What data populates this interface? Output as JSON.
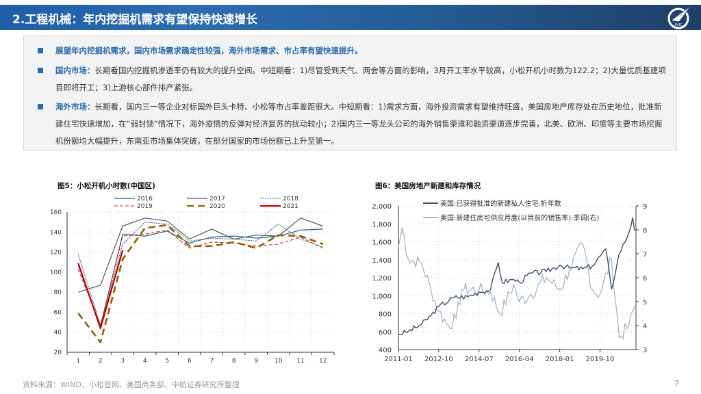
{
  "header": {
    "title": "2.工程机械：年内挖掘机需求有望保持快速增长",
    "logo_text": "AVIC",
    "bg_colors": [
      "#1f5fa8",
      "#1f3f66"
    ]
  },
  "bullets": [
    {
      "lead": "展望年内挖掘机需求，国内市场需求确定性较强，海外市场需求、市占率有望快速提升。",
      "body": ""
    },
    {
      "lead": "国内市场：",
      "body": "长期看国内挖掘机渗透率仍有较大的提升空间。中短期看：1)尽管受到天气、两会等方面的影响，3月开工率水平较高，小松开机小时数为122.2；2)大量优质基建项目即将开工；3)上游核心部件排产紧张。"
    },
    {
      "lead": "海外市场：",
      "body": "长期看，国内三一等企业对标国外巨头卡特、小松等市占率差距很大。中短期看：1)需求方面，海外投资需求有望维持旺盛，美国房地产库存处在历史地位，批准新建住宅快速增加，在“弱封锁”情况下，海外疫情的反弹对经济复苏的扰动较小；2)国内三一等龙头公司的海外销售渠道和融资渠道逐步完善，北美、欧洲、印度等主要市场挖掘机份额均大幅提升，东南亚市场集体突破，在部分国家的市场份额已上升至第一。"
    }
  ],
  "figures": {
    "fig5_title": "图5：小松开机小时数(中国区)",
    "fig6_title": "图6：美国房地产新建和库存情况"
  },
  "chart_data": [
    {
      "type": "line",
      "title": "图5：小松开机小时数(中国区)",
      "xlabel": "",
      "ylabel": "",
      "categories": [
        "1",
        "2",
        "3",
        "4",
        "5",
        "6",
        "7",
        "8",
        "9",
        "10",
        "11",
        "12"
      ],
      "ylim": [
        20,
        160
      ],
      "yticks": [
        20,
        40,
        60,
        80,
        100,
        120,
        140,
        160
      ],
      "grid": true,
      "legend_position": "top",
      "series": [
        {
          "name": "2016",
          "style": "solid",
          "color": "#2b5a8c",
          "values": [
            107,
            46,
            138,
            136,
            141,
            129,
            135,
            136,
            134,
            136,
            142,
            143
          ]
        },
        {
          "name": "2017",
          "style": "solid",
          "color": "#555555",
          "values": [
            80,
            87,
            146,
            154,
            151,
            133,
            143,
            133,
            137,
            136,
            154,
            146
          ]
        },
        {
          "name": "2018",
          "style": "dotted",
          "color": "#2b5a8c",
          "values": [
            118,
            47,
            128,
            150,
            148,
            131,
            134,
            133,
            131,
            148,
            133,
            125
          ]
        },
        {
          "name": "2019",
          "style": "dashed",
          "color": "#d2232a",
          "values": [
            103,
            47,
            136,
            138,
            142,
            124,
            130,
            129,
            126,
            128,
            135,
            124
          ]
        },
        {
          "name": "2020",
          "style": "long-dash",
          "color": "#8a6a10",
          "values": [
            59,
            30,
            113,
            144,
            147,
            126,
            126,
            130,
            124,
            137,
            136,
            128
          ]
        },
        {
          "name": "2021",
          "style": "solid-thick",
          "color": "#c00000",
          "values": [
            109,
            44,
            122
          ]
        }
      ]
    },
    {
      "type": "line",
      "title": "图6：美国房地产新建和库存情况",
      "xlabel": "",
      "ylabel": "",
      "x_ticks": [
        "2011-01",
        "2012-10",
        "2014-07",
        "2016-04",
        "2018-01",
        "2019-10"
      ],
      "ylim_left": [
        400,
        2000
      ],
      "yticks_left": [
        "400",
        "600",
        "800",
        "1,000",
        "1,200",
        "1,400",
        "1,600",
        "1,800",
        "2,000"
      ],
      "ylim_right": [
        3,
        9
      ],
      "yticks_right": [
        "3",
        "4",
        "5",
        "6",
        "7",
        "8",
        "9"
      ],
      "grid": true,
      "legend_position": "top",
      "series": [
        {
          "name": "美国:已获得批准的新建私人住宅:折年数",
          "axis": "left",
          "color": "#3d4f6b",
          "approx_points": [
            [
              "2011-01",
              570
            ],
            [
              "2011-06",
              600
            ],
            [
              "2012-01",
              680
            ],
            [
              "2012-06",
              780
            ],
            [
              "2012-10",
              880
            ],
            [
              "2013-06",
              980
            ],
            [
              "2014-01",
              990
            ],
            [
              "2014-07",
              1040
            ],
            [
              "2015-01",
              1070
            ],
            [
              "2015-05",
              1370
            ],
            [
              "2015-07",
              1150
            ],
            [
              "2016-01",
              1180
            ],
            [
              "2016-04",
              1150
            ],
            [
              "2016-10",
              1250
            ],
            [
              "2017-06",
              1270
            ],
            [
              "2018-01",
              1340
            ],
            [
              "2018-06",
              1310
            ],
            [
              "2019-01",
              1300
            ],
            [
              "2019-06",
              1330
            ],
            [
              "2019-10",
              1440
            ],
            [
              "2020-01",
              1520
            ],
            [
              "2020-04",
              1070
            ],
            [
              "2020-08",
              1470
            ],
            [
              "2021-01",
              1700
            ],
            [
              "2021-03",
              1870
            ],
            [
              "2021-04",
              1720
            ]
          ]
        },
        {
          "name": "美国:新建住房可供应月度(以目前的销售率):季调(右)",
          "axis": "right",
          "color": "#a5b4c8",
          "approx_points": [
            [
              "2011-01",
              7.3
            ],
            [
              "2011-03",
              8.1
            ],
            [
              "2011-06",
              6.8
            ],
            [
              "2012-01",
              6.6
            ],
            [
              "2012-06",
              5.5
            ],
            [
              "2012-10",
              4.6
            ],
            [
              "2013-03",
              4.0
            ],
            [
              "2013-07",
              4.3
            ],
            [
              "2013-10",
              5.5
            ],
            [
              "2014-07",
              5.5
            ],
            [
              "2015-01",
              5.4
            ],
            [
              "2015-06",
              4.5
            ],
            [
              "2016-01",
              5.7
            ],
            [
              "2016-04",
              5.0
            ],
            [
              "2016-10",
              5.3
            ],
            [
              "2017-06",
              6.0
            ],
            [
              "2018-01",
              5.5
            ],
            [
              "2018-06",
              6.3
            ],
            [
              "2019-01",
              7.4
            ],
            [
              "2019-06",
              5.5
            ],
            [
              "2019-10",
              5.3
            ],
            [
              "2020-04",
              6.8
            ],
            [
              "2020-08",
              3.5
            ],
            [
              "2021-01",
              4.0
            ],
            [
              "2021-04",
              4.8
            ]
          ]
        }
      ]
    }
  ],
  "footer": {
    "source": "资料来源：WIND、小松官网、美国商务部、中航证券研究所整理",
    "page_number": "7"
  }
}
